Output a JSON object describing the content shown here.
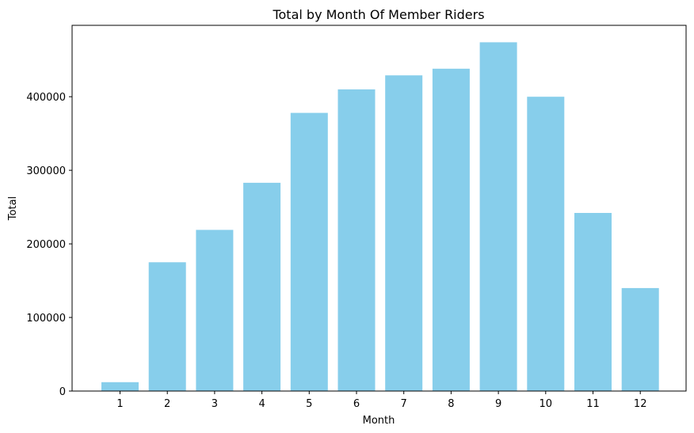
{
  "chart_data": {
    "type": "bar",
    "title": "Total by Month Of Member Riders",
    "xlabel": "Month",
    "ylabel": "Total",
    "categories": [
      "1",
      "2",
      "3",
      "4",
      "5",
      "6",
      "7",
      "8",
      "9",
      "10",
      "11",
      "12"
    ],
    "values": [
      12000,
      175000,
      219000,
      283000,
      378000,
      410000,
      429000,
      438000,
      474000,
      400000,
      242000,
      140000
    ],
    "ylim": [
      0,
      497000
    ],
    "yticks": [
      0,
      100000,
      200000,
      300000,
      400000
    ],
    "ytick_labels": [
      "0",
      "100000",
      "200000",
      "300000",
      "400000"
    ],
    "grid": false,
    "bar_color": "#87ceeb"
  }
}
